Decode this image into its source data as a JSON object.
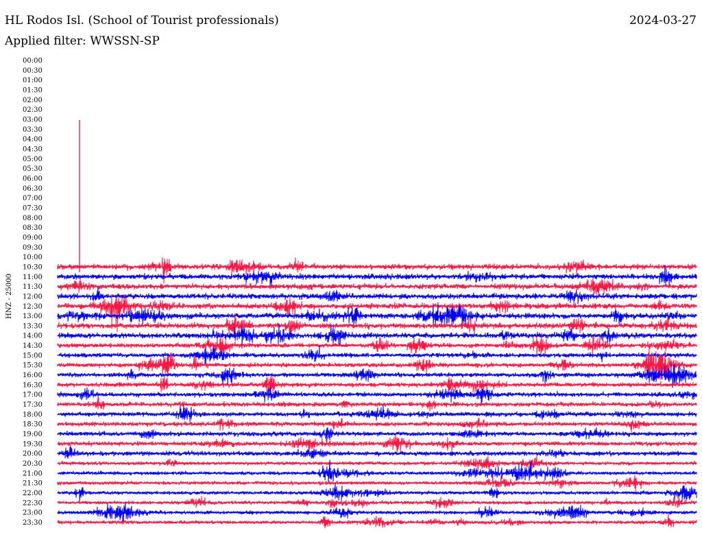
{
  "header": {
    "station": "HL Rodos Isl. (School of Tourist professionals)",
    "date": "2024-03-27",
    "filter_label": "Applied filter: WWSSN-SP"
  },
  "colors": {
    "odd_trace": "#ff1744",
    "even_trace": "#0000ff",
    "spike": "#e0004e"
  },
  "chart_data": {
    "type": "line",
    "title": "HL Rodos Isl. (School of Tourist professionals)",
    "subtitle": "Applied filter: WWSSN-SP",
    "ylabel": "HNZ - 25000",
    "xlabel": "",
    "y_tick_labels": [
      "00:00",
      "00:30",
      "01:00",
      "01:30",
      "02:00",
      "02:30",
      "03:00",
      "03:30",
      "04:00",
      "04:30",
      "05:00",
      "05:30",
      "06:00",
      "06:30",
      "07:00",
      "07:30",
      "08:00",
      "08:30",
      "09:00",
      "09:30",
      "10:00",
      "10:30",
      "11:00",
      "11:30",
      "12:00",
      "12:30",
      "13:00",
      "13:30",
      "14:00",
      "14:30",
      "15:00",
      "15:30",
      "16:00",
      "16:30",
      "17:00",
      "17:30",
      "18:00",
      "18:30",
      "19:00",
      "19:30",
      "20:00",
      "20:30",
      "21:00",
      "21:30",
      "22:00",
      "22:30",
      "23:00",
      "23:30"
    ],
    "rows_with_data_from": "10:30",
    "row_minutes": 30,
    "trace_colors_alternate": [
      "red",
      "blue"
    ],
    "spike_event": {
      "time": "10:31",
      "note": "single large vertical spike"
    },
    "grid": false,
    "legend": "none"
  }
}
